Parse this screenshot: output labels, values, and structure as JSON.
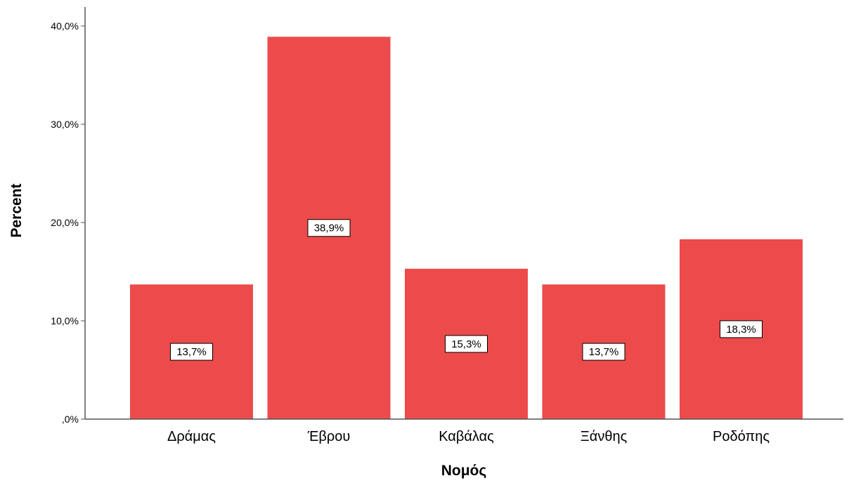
{
  "chart_data": {
    "type": "bar",
    "title": "",
    "xlabel": "Νομός",
    "ylabel": "Percent",
    "categories": [
      "Δράμας",
      "Έβρου",
      "Καβάλας",
      "Ξάνθης",
      "Ροδόπης"
    ],
    "values": [
      13.7,
      38.9,
      15.3,
      13.7,
      18.3
    ],
    "data_labels": [
      "13,7%",
      "38,9%",
      "15,3%",
      "13,7%",
      "18,3%"
    ],
    "ylim": [
      0,
      40
    ],
    "yticks": [
      0,
      10,
      20,
      30,
      40
    ],
    "ytick_labels": [
      ",0%",
      "10,0%",
      "20,0%",
      "30,0%",
      "40,0%"
    ],
    "bar_color": "#ed4a4b",
    "grid": false,
    "legend": "none"
  }
}
